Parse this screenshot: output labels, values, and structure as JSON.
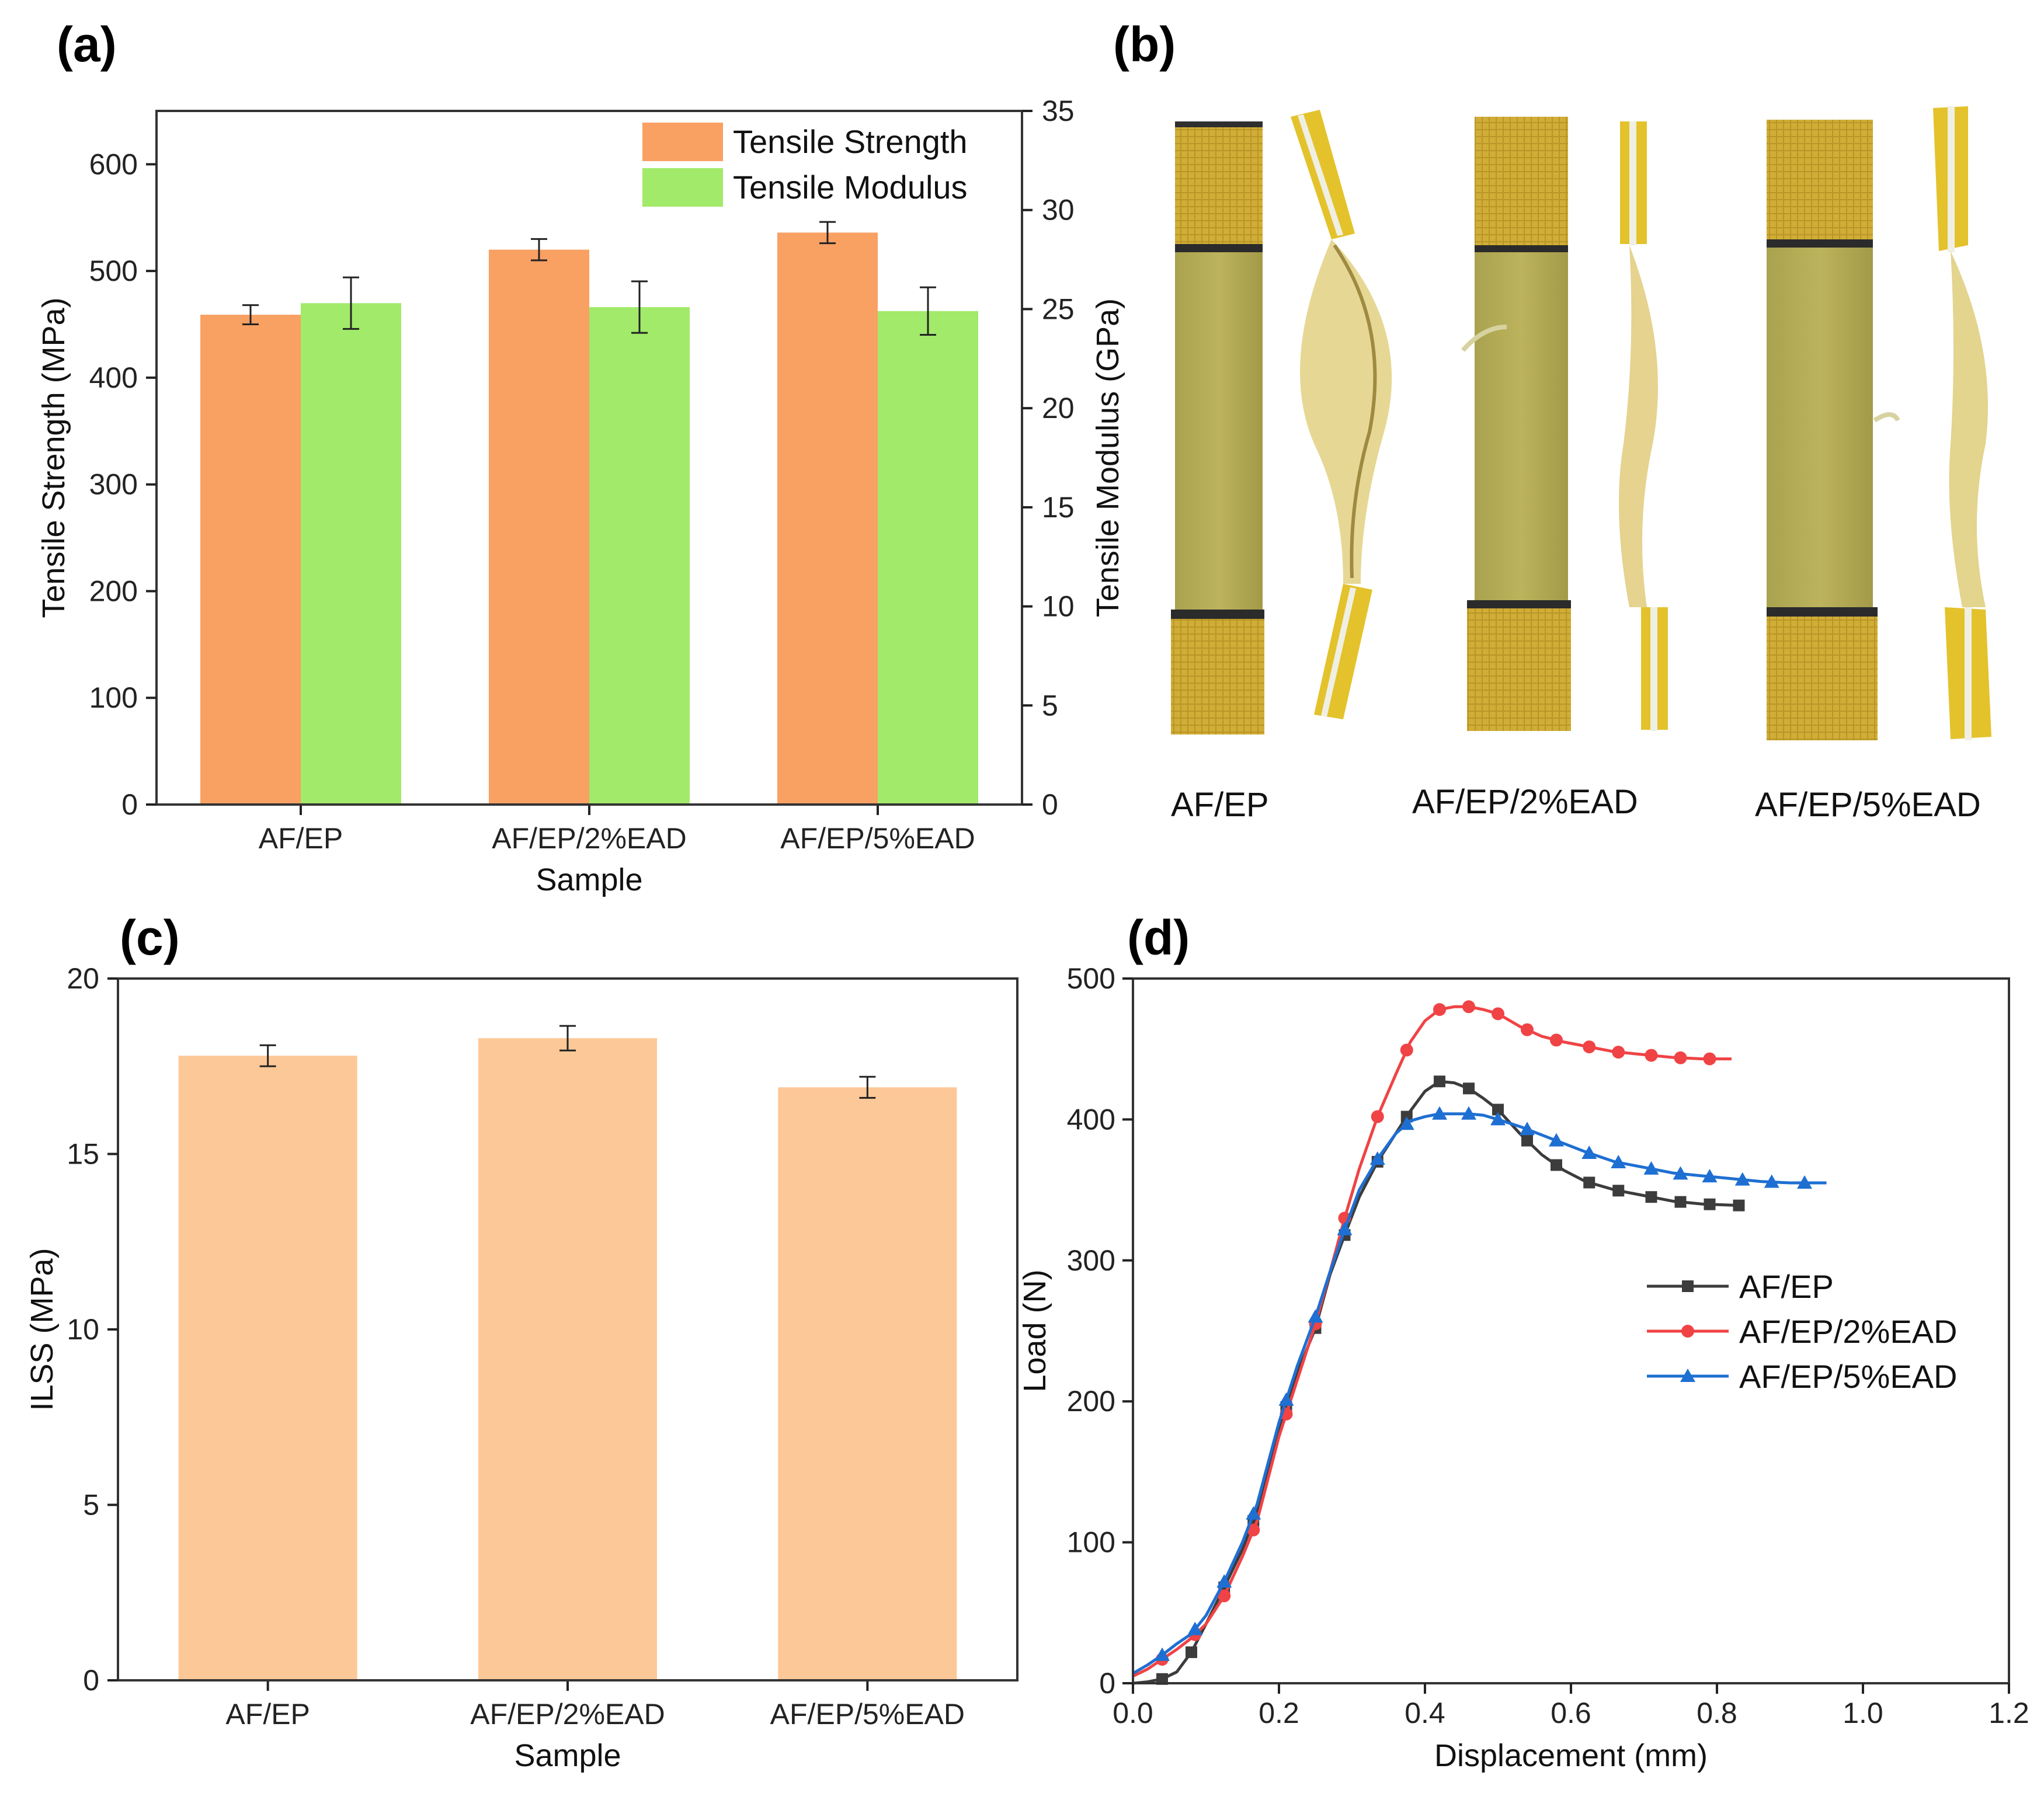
{
  "panel_labels": [
    "(a)",
    "(b)",
    "(c)",
    "(d)"
  ],
  "chart_data": [
    {
      "id": "a",
      "type": "bar",
      "categories": [
        "AF/EP",
        "AF/EP/2%EAD",
        "AF/EP/5%EAD"
      ],
      "xlabel": "Sample",
      "ylabel": "Tensile Strength (MPa)",
      "y2label": "Tensile Modulus (GPa)",
      "ylim": [
        0,
        650
      ],
      "yticks": [
        0,
        100,
        200,
        300,
        400,
        500,
        600
      ],
      "y2lim": [
        0,
        35
      ],
      "y2ticks": [
        0,
        5,
        10,
        15,
        20,
        25,
        30,
        35
      ],
      "legend": "top-right",
      "series": [
        {
          "name": "Tensile Strength",
          "axis": "left",
          "color": "#F9A063",
          "values": [
            459,
            520,
            536
          ],
          "errors": [
            9,
            10,
            10
          ]
        },
        {
          "name": "Tensile  Modulus",
          "axis": "right",
          "color": "#A1EA6A",
          "values": [
            25.3,
            25.1,
            24.9
          ],
          "errors": [
            1.3,
            1.3,
            1.2
          ]
        }
      ]
    },
    {
      "id": "c",
      "type": "bar",
      "categories": [
        "AF/EP",
        "AF/EP/2%EAD",
        "AF/EP/5%EAD"
      ],
      "xlabel": "Sample",
      "ylabel": "ILSS (MPa)",
      "ylim": [
        0,
        20
      ],
      "yticks": [
        0,
        5,
        10,
        15,
        20
      ],
      "series": [
        {
          "color": "#FDC897",
          "values": [
            17.8,
            18.3,
            16.9
          ],
          "errors": [
            0.3,
            0.35,
            0.3
          ]
        }
      ]
    },
    {
      "id": "d",
      "type": "line",
      "xlabel": "Displacement (mm)",
      "ylabel": "Load (N)",
      "xlim": [
        0,
        1.2
      ],
      "ylim": [
        0,
        500
      ],
      "xticks": [
        "0.0",
        "0.2",
        "0.4",
        "0.6",
        "0.8",
        "1.0",
        "1.2"
      ],
      "yticks": [
        0,
        100,
        200,
        300,
        400,
        500
      ],
      "legend": "right",
      "series": [
        {
          "name": "AF/EP",
          "color": "#3C3C3C",
          "marker": "square",
          "x": [
            0,
            0.02,
            0.04,
            0.06,
            0.08,
            0.1,
            0.125,
            0.15,
            0.17,
            0.2,
            0.225,
            0.25,
            0.27,
            0.29,
            0.31,
            0.335,
            0.36,
            0.38,
            0.4,
            0.42,
            0.44,
            0.46,
            0.48,
            0.5,
            0.53,
            0.56,
            0.59,
            0.62,
            0.66,
            0.7,
            0.74,
            0.78,
            0.83
          ],
          "y": [
            0,
            1,
            3,
            8,
            22,
            42,
            68,
            95,
            122,
            180,
            220,
            252,
            290,
            318,
            345,
            370,
            390,
            406,
            420,
            427,
            426,
            422,
            415,
            407,
            390,
            375,
            364,
            356,
            350,
            346,
            342,
            340,
            339
          ],
          "marker_x": [
            0.04,
            0.08,
            0.125,
            0.165,
            0.21,
            0.25,
            0.29,
            0.335,
            0.375,
            0.42,
            0.46,
            0.5,
            0.54,
            0.58,
            0.625,
            0.665,
            0.71,
            0.75,
            0.79,
            0.83
          ]
        },
        {
          "name": "AF/EP/2%EAD",
          "color": "#F04345",
          "marker": "circle",
          "x": [
            0,
            0.02,
            0.04,
            0.06,
            0.08,
            0.1,
            0.125,
            0.15,
            0.17,
            0.2,
            0.225,
            0.25,
            0.27,
            0.29,
            0.31,
            0.335,
            0.36,
            0.38,
            0.4,
            0.42,
            0.44,
            0.46,
            0.48,
            0.5,
            0.53,
            0.56,
            0.59,
            0.62,
            0.66,
            0.7,
            0.74,
            0.78,
            0.82
          ],
          "y": [
            5,
            10,
            17,
            24,
            32,
            42,
            62,
            90,
            115,
            175,
            215,
            255,
            292,
            330,
            365,
            402,
            432,
            455,
            470,
            478,
            480,
            480,
            478,
            475,
            466,
            459,
            455,
            452,
            448,
            446,
            444,
            443,
            443
          ],
          "marker_x": [
            0.04,
            0.085,
            0.125,
            0.165,
            0.21,
            0.25,
            0.29,
            0.335,
            0.375,
            0.42,
            0.46,
            0.5,
            0.54,
            0.58,
            0.625,
            0.665,
            0.71,
            0.75,
            0.79
          ]
        },
        {
          "name": "AF/EP/5%EAD",
          "color": "#1E6FD2",
          "marker": "triangle",
          "x": [
            0,
            0.02,
            0.04,
            0.06,
            0.08,
            0.1,
            0.125,
            0.15,
            0.17,
            0.2,
            0.225,
            0.25,
            0.27,
            0.29,
            0.31,
            0.335,
            0.36,
            0.38,
            0.4,
            0.42,
            0.44,
            0.46,
            0.48,
            0.5,
            0.53,
            0.56,
            0.59,
            0.62,
            0.66,
            0.7,
            0.74,
            0.78,
            0.82,
            0.86,
            0.9,
            0.95
          ],
          "y": [
            7,
            13,
            20,
            28,
            35,
            48,
            72,
            100,
            127,
            185,
            225,
            260,
            292,
            322,
            350,
            372,
            390,
            399,
            402,
            404,
            404,
            404,
            403,
            400,
            395,
            389,
            383,
            377,
            370,
            366,
            362,
            360,
            358,
            356,
            355,
            355
          ],
          "marker_x": [
            0.04,
            0.085,
            0.125,
            0.165,
            0.21,
            0.25,
            0.29,
            0.335,
            0.375,
            0.42,
            0.46,
            0.5,
            0.54,
            0.58,
            0.625,
            0.665,
            0.71,
            0.75,
            0.79,
            0.835,
            0.875,
            0.92
          ]
        }
      ]
    }
  ],
  "photo_panel": {
    "labels": [
      "AF/EP",
      "AF/EP/2%EAD",
      "AF/EP/5%EAD"
    ]
  }
}
